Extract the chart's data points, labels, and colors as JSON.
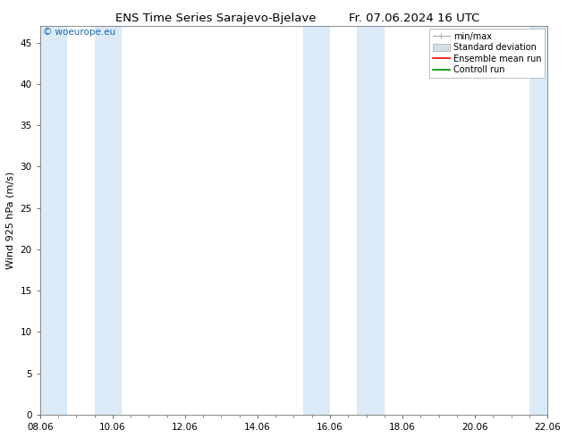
{
  "title_left": "ENS Time Series Sarajevo-Bjelave",
  "title_right": "Fr. 07.06.2024 16 UTC",
  "ylabel": "Wind 925 hPa (m/s)",
  "watermark": "© woeurope.eu",
  "ylim": [
    0,
    47
  ],
  "yticks": [
    0,
    5,
    10,
    15,
    20,
    25,
    30,
    35,
    40,
    45
  ],
  "x_start": 0,
  "x_end": 14,
  "xtick_labels": [
    "08.06",
    "10.06",
    "12.06",
    "14.06",
    "16.06",
    "18.06",
    "20.06",
    "22.06"
  ],
  "xtick_positions": [
    0,
    2,
    4,
    6,
    8,
    10,
    12,
    14
  ],
  "shaded_bands": [
    {
      "x_start": 0.0,
      "x_end": 0.75
    },
    {
      "x_start": 1.5,
      "x_end": 2.25
    },
    {
      "x_start": 7.25,
      "x_end": 8.0
    },
    {
      "x_start": 8.75,
      "x_end": 9.5
    },
    {
      "x_start": 13.5,
      "x_end": 14.0
    }
  ],
  "shade_color": "#daeaf7",
  "bg_color": "#ffffff",
  "plot_bg_color": "#ffffff",
  "legend_items": [
    "min/max",
    "Standard deviation",
    "Ensemble mean run",
    "Controll run"
  ],
  "legend_handle_colors": [
    "#aaaaaa",
    "#d0dfe8",
    "#ff0000",
    "#008800"
  ],
  "title_fontsize": 9.5,
  "axis_label_fontsize": 8,
  "tick_fontsize": 7.5,
  "watermark_fontsize": 7.5
}
